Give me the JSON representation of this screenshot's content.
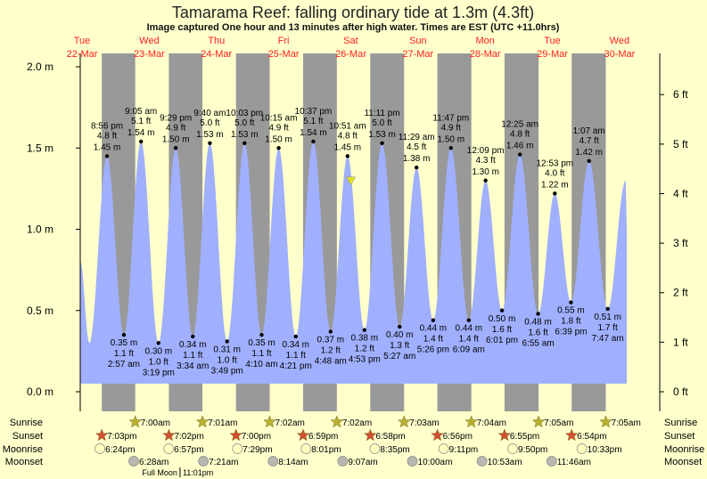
{
  "chart_data": {
    "type": "area",
    "title": "Tamarama Reef: falling  ordinary tide at 1.3m (4.3ft)",
    "subtitle": "Image captured One hour and 13 minutes after high water. Times are EST (UTC +11.0hrs)",
    "days": [
      {
        "dow": "Tue",
        "date": "22-Mar"
      },
      {
        "dow": "Wed",
        "date": "23-Mar"
      },
      {
        "dow": "Thu",
        "date": "24-Mar"
      },
      {
        "dow": "Fri",
        "date": "25-Mar"
      },
      {
        "dow": "Sat",
        "date": "26-Mar"
      },
      {
        "dow": "Sun",
        "date": "27-Mar"
      },
      {
        "dow": "Mon",
        "date": "28-Mar"
      },
      {
        "dow": "Tue",
        "date": "29-Mar"
      },
      {
        "dow": "Wed",
        "date": "30-Mar"
      }
    ],
    "y_left": {
      "unit": "m",
      "ylim": [
        0,
        2.0
      ],
      "ticks": [
        "0.0 m",
        "0.5 m",
        "1.0 m",
        "1.5 m",
        "2.0 m"
      ],
      "tick_values": [
        0,
        0.5,
        1.0,
        1.5,
        2.0
      ]
    },
    "y_right": {
      "unit": "ft",
      "ticks": [
        "0 ft",
        "1 ft",
        "2 ft",
        "3 ft",
        "4 ft",
        "5 ft",
        "6 ft"
      ],
      "tick_values": [
        0,
        1,
        2,
        3,
        4,
        5,
        6
      ]
    },
    "current": {
      "date": "26-Mar",
      "time": "12:04 pm",
      "height_m": 1.3
    },
    "extremes": [
      {
        "type": "high",
        "date": "22-Mar",
        "time": "8:56 pm",
        "ft": "4.8 ft",
        "m": 1.45
      },
      {
        "type": "low",
        "date": "23-Mar",
        "time": "2:57 am",
        "ft": "1.1 ft",
        "m": 0.35
      },
      {
        "type": "high",
        "date": "23-Mar",
        "time": "9:05 am",
        "ft": "5.1 ft",
        "m": 1.54
      },
      {
        "type": "low",
        "date": "23-Mar",
        "time": "3:19 pm",
        "ft": "1.0 ft",
        "m": 0.3
      },
      {
        "type": "high",
        "date": "23-Mar",
        "time": "9:29 pm",
        "ft": "4.9 ft",
        "m": 1.5
      },
      {
        "type": "low",
        "date": "24-Mar",
        "time": "3:34 am",
        "ft": "1.1 ft",
        "m": 0.34
      },
      {
        "type": "high",
        "date": "24-Mar",
        "time": "9:40 am",
        "ft": "5.0 ft",
        "m": 1.53
      },
      {
        "type": "low",
        "date": "24-Mar",
        "time": "3:49 pm",
        "ft": "1.0 ft",
        "m": 0.31
      },
      {
        "type": "high",
        "date": "24-Mar",
        "time": "10:03 pm",
        "ft": "5.0 ft",
        "m": 1.53
      },
      {
        "type": "low",
        "date": "25-Mar",
        "time": "4:10 am",
        "ft": "1.1 ft",
        "m": 0.35
      },
      {
        "type": "high",
        "date": "25-Mar",
        "time": "10:15 am",
        "ft": "4.9 ft",
        "m": 1.5
      },
      {
        "type": "low",
        "date": "25-Mar",
        "time": "4:21 pm",
        "ft": "1.1 ft",
        "m": 0.34
      },
      {
        "type": "high",
        "date": "25-Mar",
        "time": "10:37 pm",
        "ft": "5.1 ft",
        "m": 1.54
      },
      {
        "type": "low",
        "date": "26-Mar",
        "time": "4:48 am",
        "ft": "1.2 ft",
        "m": 0.37
      },
      {
        "type": "high",
        "date": "26-Mar",
        "time": "10:51 am",
        "ft": "4.8 ft",
        "m": 1.45
      },
      {
        "type": "low",
        "date": "26-Mar",
        "time": "4:53 pm",
        "ft": "1.2 ft",
        "m": 0.38
      },
      {
        "type": "high",
        "date": "26-Mar",
        "time": "11:11 pm",
        "ft": "5.0 ft",
        "m": 1.53
      },
      {
        "type": "low",
        "date": "27-Mar",
        "time": "5:27 am",
        "ft": "1.3 ft",
        "m": 0.4
      },
      {
        "type": "high",
        "date": "27-Mar",
        "time": "11:29 am",
        "ft": "4.5 ft",
        "m": 1.38
      },
      {
        "type": "low",
        "date": "27-Mar",
        "time": "5:26 pm",
        "ft": "1.4 ft",
        "m": 0.44
      },
      {
        "type": "high",
        "date": "27-Mar",
        "time": "11:47 pm",
        "ft": "4.9 ft",
        "m": 1.5
      },
      {
        "type": "low",
        "date": "28-Mar",
        "time": "6:09 am",
        "ft": "1.4 ft",
        "m": 0.44
      },
      {
        "type": "high",
        "date": "28-Mar",
        "time": "12:09 pm",
        "ft": "4.3 ft",
        "m": 1.3
      },
      {
        "type": "low",
        "date": "28-Mar",
        "time": "6:01 pm",
        "ft": "1.6 ft",
        "m": 0.5
      },
      {
        "type": "high",
        "date": "29-Mar",
        "time": "12:25 am",
        "ft": "4.8 ft",
        "m": 1.46
      },
      {
        "type": "low",
        "date": "29-Mar",
        "time": "6:55 am",
        "ft": "1.6 ft",
        "m": 0.48
      },
      {
        "type": "high",
        "date": "29-Mar",
        "time": "12:53 pm",
        "ft": "4.0 ft",
        "m": 1.22
      },
      {
        "type": "low",
        "date": "29-Mar",
        "time": "6:39 pm",
        "ft": "1.8 ft",
        "m": 0.55
      },
      {
        "type": "high",
        "date": "30-Mar",
        "time": "1:07 am",
        "ft": "4.7 ft",
        "m": 1.42
      },
      {
        "type": "low",
        "date": "30-Mar",
        "time": "7:47 am",
        "ft": "1.7 ft",
        "m": 0.51
      }
    ],
    "rows": [
      {
        "label": "Sunrise",
        "kind": "sunrise",
        "events": [
          {
            "date": "23-Mar",
            "time": "7:00am"
          },
          {
            "date": "24-Mar",
            "time": "7:01am"
          },
          {
            "date": "25-Mar",
            "time": "7:02am"
          },
          {
            "date": "26-Mar",
            "time": "7:02am"
          },
          {
            "date": "27-Mar",
            "time": "7:03am"
          },
          {
            "date": "28-Mar",
            "time": "7:04am"
          },
          {
            "date": "29-Mar",
            "time": "7:05am"
          },
          {
            "date": "30-Mar",
            "time": "7:05am"
          }
        ]
      },
      {
        "label": "Sunset",
        "kind": "sunset",
        "events": [
          {
            "date": "22-Mar",
            "time": "7:03pm"
          },
          {
            "date": "23-Mar",
            "time": "7:02pm"
          },
          {
            "date": "24-Mar",
            "time": "7:00pm"
          },
          {
            "date": "25-Mar",
            "time": "6:59pm"
          },
          {
            "date": "26-Mar",
            "time": "6:58pm"
          },
          {
            "date": "27-Mar",
            "time": "6:56pm"
          },
          {
            "date": "28-Mar",
            "time": "6:55pm"
          },
          {
            "date": "29-Mar",
            "time": "6:54pm"
          }
        ]
      },
      {
        "label": "Moonrise",
        "kind": "moonrise",
        "events": [
          {
            "date": "22-Mar",
            "time": "6:24pm"
          },
          {
            "date": "23-Mar",
            "time": "6:57pm"
          },
          {
            "date": "24-Mar",
            "time": "7:29pm"
          },
          {
            "date": "25-Mar",
            "time": "8:01pm"
          },
          {
            "date": "26-Mar",
            "time": "8:35pm"
          },
          {
            "date": "27-Mar",
            "time": "9:11pm"
          },
          {
            "date": "28-Mar",
            "time": "9:50pm"
          },
          {
            "date": "29-Mar",
            "time": "10:33pm"
          }
        ]
      },
      {
        "label": "Moonset",
        "kind": "moonset",
        "events": [
          {
            "date": "23-Mar",
            "time": "6:28am"
          },
          {
            "date": "24-Mar",
            "time": "7:21am"
          },
          {
            "date": "25-Mar",
            "time": "8:14am"
          },
          {
            "date": "26-Mar",
            "time": "9:07am"
          },
          {
            "date": "27-Mar",
            "time": "10:00am"
          },
          {
            "date": "28-Mar",
            "time": "10:53am"
          },
          {
            "date": "29-Mar",
            "time": "11:46am"
          }
        ]
      }
    ],
    "moon_phase": {
      "label": "Full Moon",
      "date": "23-Mar",
      "time": "11:01pm"
    },
    "colors": {
      "day": "#ffffcc",
      "night": "#999999",
      "water": "#a0b0ff",
      "day_labels": "#ff2020",
      "sunrise": "#b8b030",
      "sunset": "#d05030",
      "moonrise": "#ffffc0",
      "moonset": "#b8b8b0",
      "marker": "#e0e020"
    }
  }
}
